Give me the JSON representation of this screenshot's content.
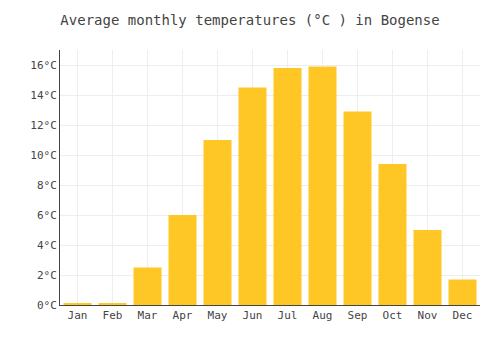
{
  "chart_data": {
    "type": "bar",
    "title": "Average monthly temperatures (°C ) in Bogense",
    "categories": [
      "Jan",
      "Feb",
      "Mar",
      "Apr",
      "May",
      "Jun",
      "Jul",
      "Aug",
      "Sep",
      "Oct",
      "Nov",
      "Dec"
    ],
    "values": [
      0.1,
      0.1,
      2.5,
      6.0,
      11.0,
      14.5,
      15.8,
      15.9,
      12.9,
      9.4,
      5.0,
      1.7
    ],
    "color": "#FFC726",
    "ylim": [
      0,
      17
    ],
    "yticks": [
      {
        "value": 0,
        "label": "0°C"
      },
      {
        "value": 2,
        "label": "2°C"
      },
      {
        "value": 4,
        "label": "4°C"
      },
      {
        "value": 6,
        "label": "6°C"
      },
      {
        "value": 8,
        "label": "8°C"
      },
      {
        "value": 10,
        "label": "10°C"
      },
      {
        "value": 12,
        "label": "12°C"
      },
      {
        "value": 14,
        "label": "14°C"
      },
      {
        "value": 16,
        "label": "16°C"
      }
    ],
    "grid": true
  }
}
